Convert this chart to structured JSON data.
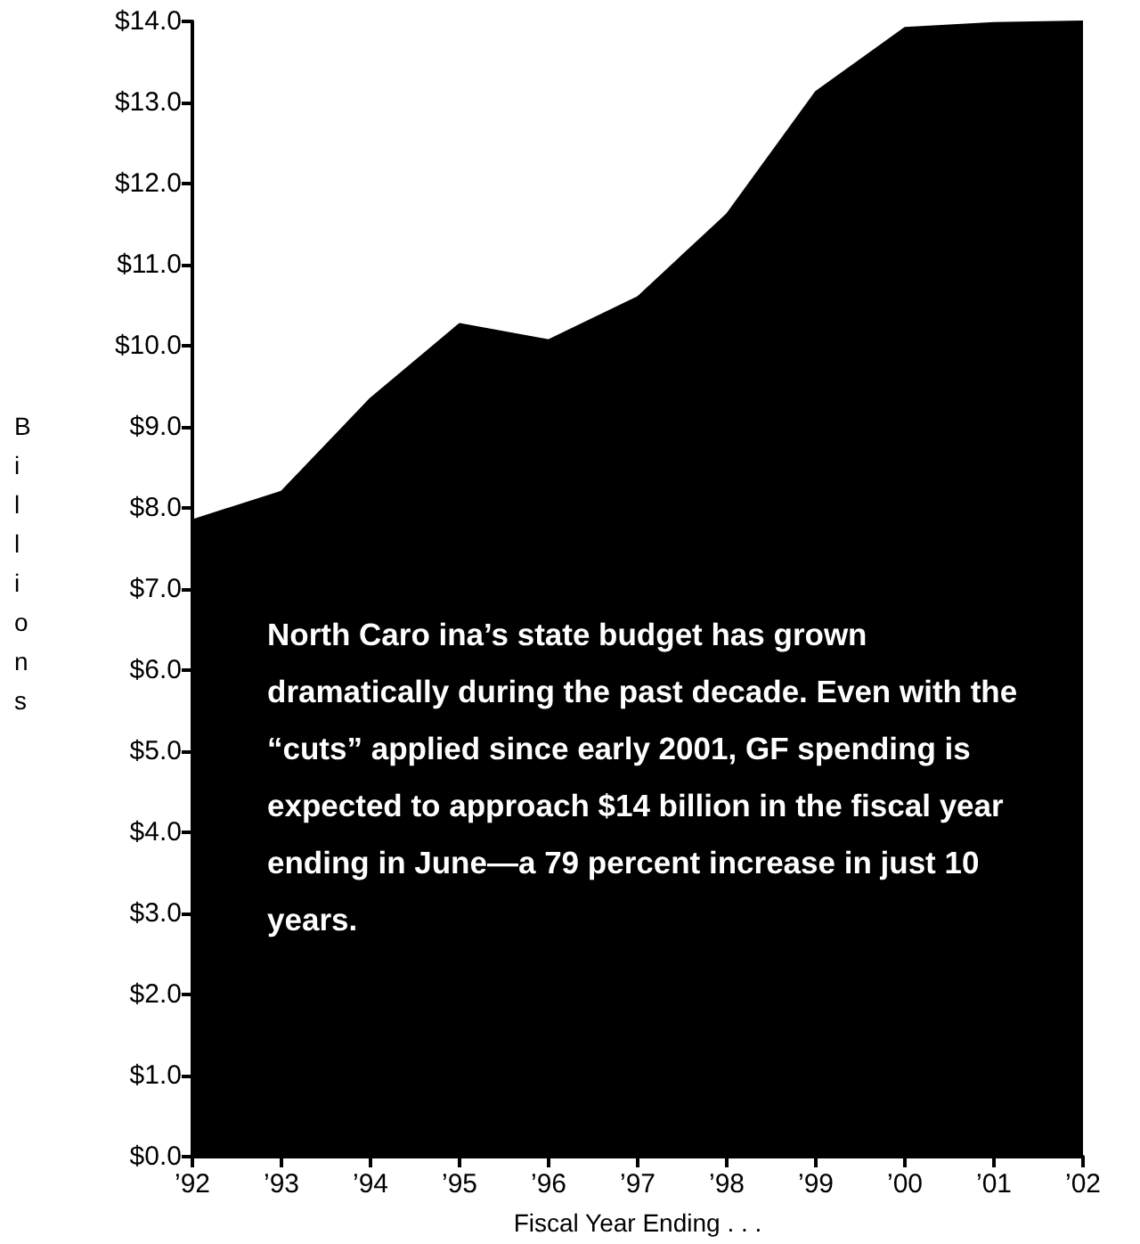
{
  "chart_data": {
    "type": "area",
    "xlabel": "Fiscal Year Ending . . .",
    "ylabel": "Billions",
    "categories": [
      "’92",
      "’93",
      "’94",
      "’95",
      "’96",
      "’97",
      "’98",
      "’99",
      "’00",
      "’01",
      "’02"
    ],
    "series": [
      {
        "color": "#000000",
        "values": [
          7.85,
          8.2,
          9.35,
          10.27,
          10.07,
          10.6,
          11.62,
          13.13,
          13.92,
          13.98,
          14.0
        ]
      }
    ],
    "ylim": [
      0,
      14
    ],
    "yticks": [
      {
        "value": 0,
        "label": "$0.0"
      },
      {
        "value": 1,
        "label": "$1.0"
      },
      {
        "value": 2,
        "label": "$2.0"
      },
      {
        "value": 3,
        "label": "$3.0"
      },
      {
        "value": 4,
        "label": "$4.0"
      },
      {
        "value": 5,
        "label": "$5.0"
      },
      {
        "value": 6,
        "label": "$6.0"
      },
      {
        "value": 7,
        "label": "$7.0"
      },
      {
        "value": 8,
        "label": "$8.0"
      },
      {
        "value": 9,
        "label": "$9.0"
      },
      {
        "value": 10,
        "label": "$10.0"
      },
      {
        "value": 11,
        "label": "$11.0"
      },
      {
        "value": 12,
        "label": "$12.0"
      },
      {
        "value": 13,
        "label": "$13.0"
      },
      {
        "value": 14,
        "label": "$14.0"
      }
    ],
    "grid": false,
    "annotations": [
      "North Caro ina’s state budget has grown dramatically during the past decade. Even with the “cuts” applied since early 2001, GF spending is expected to approach $14 billion in the fiscal year ending in June—a 79 percent increase in just 10 years."
    ]
  }
}
